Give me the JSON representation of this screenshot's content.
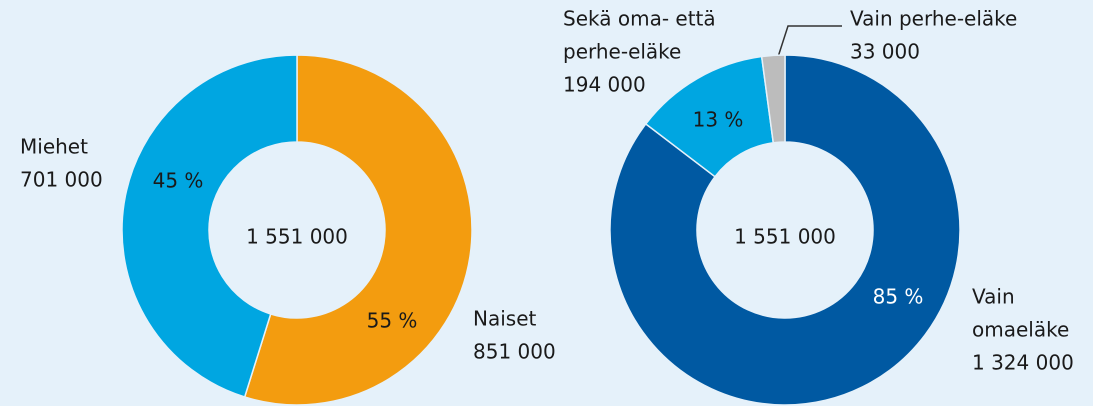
{
  "chart_data": [
    {
      "type": "donut",
      "center_label": "1 551 000",
      "categories": [
        [
          "Naiset"
        ],
        [
          "Miehet"
        ]
      ],
      "values": [
        851000,
        701000
      ],
      "value_labels": [
        "851 000",
        "701 000"
      ],
      "percentages": [
        55,
        45
      ],
      "percentage_labels": [
        "55 %",
        "45 %"
      ],
      "colors": [
        "#f39c0f",
        "#00a6e1"
      ]
    },
    {
      "type": "donut",
      "center_label": "1 551 000",
      "categories": [
        [
          "Vain",
          "omaeläke"
        ],
        [
          "Sekä oma- että",
          "perhe-eläke"
        ],
        [
          "Vain perhe-eläke"
        ]
      ],
      "values": [
        1324000,
        194000,
        33000
      ],
      "value_labels": [
        "1 324 000",
        "194 000",
        "33 000"
      ],
      "percentages": [
        85,
        13,
        null
      ],
      "percentage_labels": [
        "85 %",
        "13 %",
        null
      ],
      "colors": [
        "#0059a2",
        "#00a6e1",
        "#bcbcbc"
      ]
    }
  ]
}
